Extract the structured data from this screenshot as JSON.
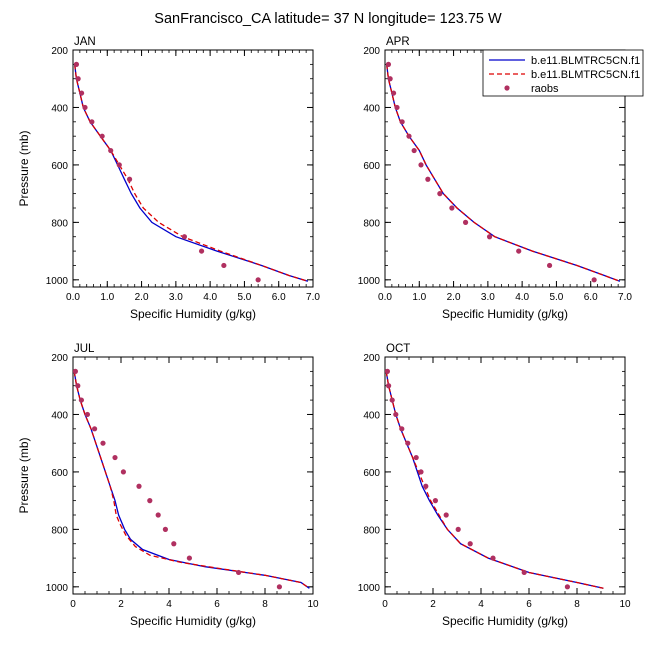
{
  "title": "SanFrancisco_CA  latitude= 37 N longitude= 123.75 W",
  "legend": {
    "items": [
      {
        "label": "b.e11.BLMTRC5CN.f1",
        "color": "#0000cc",
        "style": "solid"
      },
      {
        "label": "b.e11.BLMTRC5CN.f1",
        "color": "#dd0000",
        "style": "dashed"
      },
      {
        "label": "raobs",
        "color": "#b03060",
        "style": "marker"
      }
    ]
  },
  "chart_data": [
    {
      "type": "line",
      "panel": "JAN",
      "xlabel": "Specific Humidity (g/kg)",
      "ylabel": "Pressure (mb)",
      "xlim": [
        0,
        7
      ],
      "ylim": [
        1025,
        200
      ],
      "xticks": [
        "0.0",
        "1.0",
        "2.0",
        "3.0",
        "4.0",
        "5.0",
        "6.0",
        "7.0"
      ],
      "xtick_values": [
        0,
        1,
        2,
        3,
        4,
        5,
        6,
        7
      ],
      "yticks": [
        "200",
        "400",
        "600",
        "800",
        "1000"
      ],
      "ytick_values": [
        200,
        400,
        600,
        800,
        1000
      ],
      "series": [
        {
          "color": "#0000cc",
          "dash": "solid",
          "points": [
            [
              0.05,
              250
            ],
            [
              0.1,
              300
            ],
            [
              0.2,
              350
            ],
            [
              0.3,
              400
            ],
            [
              0.5,
              450
            ],
            [
              0.8,
              500
            ],
            [
              1.1,
              550
            ],
            [
              1.3,
              600
            ],
            [
              1.5,
              650
            ],
            [
              1.7,
              700
            ],
            [
              1.95,
              750
            ],
            [
              2.3,
              800
            ],
            [
              3.0,
              850
            ],
            [
              4.2,
              900
            ],
            [
              5.5,
              950
            ],
            [
              6.3,
              985
            ],
            [
              6.85,
              1005
            ]
          ]
        },
        {
          "color": "#dd0000",
          "dash": "dashed",
          "points": [
            [
              0.05,
              250
            ],
            [
              0.1,
              300
            ],
            [
              0.2,
              350
            ],
            [
              0.3,
              400
            ],
            [
              0.5,
              450
            ],
            [
              0.8,
              500
            ],
            [
              1.1,
              550
            ],
            [
              1.35,
              600
            ],
            [
              1.6,
              650
            ],
            [
              1.8,
              700
            ],
            [
              2.05,
              750
            ],
            [
              2.5,
              800
            ],
            [
              3.2,
              850
            ],
            [
              4.3,
              900
            ],
            [
              5.5,
              950
            ],
            [
              6.3,
              985
            ],
            [
              6.85,
              1005
            ]
          ]
        },
        {
          "color": "#b03060",
          "marker": true,
          "points": [
            [
              0.1,
              250
            ],
            [
              0.15,
              300
            ],
            [
              0.25,
              350
            ],
            [
              0.35,
              400
            ],
            [
              0.55,
              450
            ],
            [
              0.85,
              500
            ],
            [
              1.1,
              550
            ],
            [
              1.35,
              600
            ],
            [
              1.65,
              650
            ],
            [
              3.25,
              850
            ],
            [
              3.75,
              900
            ],
            [
              4.4,
              950
            ],
            [
              5.4,
              1000
            ]
          ]
        }
      ]
    },
    {
      "type": "line",
      "panel": "APR",
      "xlabel": "Specific Humidity (g/kg)",
      "ylabel": "",
      "xlim": [
        0,
        7
      ],
      "ylim": [
        1025,
        200
      ],
      "xticks": [
        "0.0",
        "1.0",
        "2.0",
        "3.0",
        "4.0",
        "5.0",
        "6.0",
        "7.0"
      ],
      "xtick_values": [
        0,
        1,
        2,
        3,
        4,
        5,
        6,
        7
      ],
      "yticks": [
        "200",
        "400",
        "600",
        "800",
        "1000"
      ],
      "ytick_values": [
        200,
        400,
        600,
        800,
        1000
      ],
      "series": [
        {
          "color": "#0000cc",
          "dash": "solid",
          "points": [
            [
              0.05,
              250
            ],
            [
              0.1,
              300
            ],
            [
              0.2,
              350
            ],
            [
              0.3,
              400
            ],
            [
              0.45,
              450
            ],
            [
              0.7,
              500
            ],
            [
              1.0,
              550
            ],
            [
              1.2,
              600
            ],
            [
              1.45,
              650
            ],
            [
              1.7,
              700
            ],
            [
              2.1,
              750
            ],
            [
              2.6,
              800
            ],
            [
              3.2,
              850
            ],
            [
              4.3,
              900
            ],
            [
              5.6,
              950
            ],
            [
              6.4,
              985
            ],
            [
              6.85,
              1005
            ]
          ]
        },
        {
          "color": "#dd0000",
          "dash": "dashed",
          "points": [
            [
              0.05,
              250
            ],
            [
              0.1,
              300
            ],
            [
              0.2,
              350
            ],
            [
              0.3,
              400
            ],
            [
              0.45,
              450
            ],
            [
              0.7,
              500
            ],
            [
              1.0,
              550
            ],
            [
              1.2,
              600
            ],
            [
              1.45,
              650
            ],
            [
              1.7,
              700
            ],
            [
              2.1,
              750
            ],
            [
              2.6,
              800
            ],
            [
              3.2,
              850
            ],
            [
              4.3,
              900
            ],
            [
              5.6,
              950
            ],
            [
              6.4,
              985
            ],
            [
              6.85,
              1005
            ]
          ]
        },
        {
          "color": "#b03060",
          "marker": true,
          "points": [
            [
              0.1,
              250
            ],
            [
              0.15,
              300
            ],
            [
              0.25,
              350
            ],
            [
              0.35,
              400
            ],
            [
              0.5,
              450
            ],
            [
              0.7,
              500
            ],
            [
              0.85,
              550
            ],
            [
              1.05,
              600
            ],
            [
              1.25,
              650
            ],
            [
              1.6,
              700
            ],
            [
              1.95,
              750
            ],
            [
              2.35,
              800
            ],
            [
              3.05,
              850
            ],
            [
              3.9,
              900
            ],
            [
              4.8,
              950
            ],
            [
              6.1,
              1000
            ]
          ]
        }
      ]
    },
    {
      "type": "line",
      "panel": "JUL",
      "xlabel": "Specific Humidity (g/kg)",
      "ylabel": "Pressure (mb)",
      "xlim": [
        0,
        10
      ],
      "ylim": [
        1025,
        200
      ],
      "xticks": [
        "0",
        "2",
        "4",
        "6",
        "8",
        "10"
      ],
      "xtick_values": [
        0,
        2,
        4,
        6,
        8,
        10
      ],
      "yticks": [
        "200",
        "400",
        "600",
        "800",
        "1000"
      ],
      "ytick_values": [
        200,
        400,
        600,
        800,
        1000
      ],
      "series": [
        {
          "color": "#0000cc",
          "dash": "solid",
          "points": [
            [
              0.05,
              250
            ],
            [
              0.15,
              300
            ],
            [
              0.3,
              350
            ],
            [
              0.5,
              400
            ],
            [
              0.75,
              450
            ],
            [
              0.95,
              500
            ],
            [
              1.15,
              550
            ],
            [
              1.35,
              600
            ],
            [
              1.55,
              650
            ],
            [
              1.75,
              700
            ],
            [
              1.9,
              750
            ],
            [
              2.15,
              800
            ],
            [
              2.4,
              835
            ],
            [
              2.9,
              870
            ],
            [
              4.0,
              905
            ],
            [
              5.5,
              930
            ],
            [
              8.0,
              960
            ],
            [
              9.5,
              985
            ],
            [
              9.85,
              1005
            ]
          ]
        },
        {
          "color": "#dd0000",
          "dash": "dashed",
          "points": [
            [
              0.05,
              250
            ],
            [
              0.15,
              300
            ],
            [
              0.3,
              350
            ],
            [
              0.5,
              400
            ],
            [
              0.75,
              450
            ],
            [
              0.95,
              500
            ],
            [
              1.15,
              550
            ],
            [
              1.35,
              600
            ],
            [
              1.55,
              650
            ],
            [
              1.7,
              700
            ],
            [
              1.8,
              750
            ],
            [
              1.95,
              780
            ],
            [
              2.2,
              820
            ],
            [
              2.6,
              860
            ],
            [
              3.2,
              890
            ],
            [
              4.5,
              915
            ],
            [
              6.0,
              935
            ],
            [
              8.0,
              960
            ],
            [
              9.5,
              985
            ],
            [
              9.85,
              1005
            ]
          ]
        },
        {
          "color": "#b03060",
          "marker": true,
          "points": [
            [
              0.1,
              250
            ],
            [
              0.2,
              300
            ],
            [
              0.35,
              350
            ],
            [
              0.6,
              400
            ],
            [
              0.9,
              450
            ],
            [
              1.25,
              500
            ],
            [
              1.75,
              550
            ],
            [
              2.1,
              600
            ],
            [
              2.75,
              650
            ],
            [
              3.2,
              700
            ],
            [
              3.55,
              750
            ],
            [
              3.85,
              800
            ],
            [
              4.2,
              850
            ],
            [
              4.85,
              900
            ],
            [
              6.9,
              950
            ],
            [
              8.6,
              1000
            ]
          ]
        }
      ]
    },
    {
      "type": "line",
      "panel": "OCT",
      "xlabel": "Specific Humidity (g/kg)",
      "ylabel": "",
      "xlim": [
        0,
        10
      ],
      "ylim": [
        1025,
        200
      ],
      "xticks": [
        "0",
        "2",
        "4",
        "6",
        "8",
        "10"
      ],
      "xtick_values": [
        0,
        2,
        4,
        6,
        8,
        10
      ],
      "yticks": [
        "200",
        "400",
        "600",
        "800",
        "1000"
      ],
      "ytick_values": [
        200,
        400,
        600,
        800,
        1000
      ],
      "series": [
        {
          "color": "#0000cc",
          "dash": "solid",
          "points": [
            [
              0.05,
              250
            ],
            [
              0.15,
              300
            ],
            [
              0.3,
              350
            ],
            [
              0.45,
              400
            ],
            [
              0.65,
              450
            ],
            [
              0.9,
              500
            ],
            [
              1.15,
              550
            ],
            [
              1.35,
              600
            ],
            [
              1.55,
              650
            ],
            [
              1.85,
              700
            ],
            [
              2.2,
              750
            ],
            [
              2.6,
              800
            ],
            [
              3.15,
              850
            ],
            [
              4.3,
              900
            ],
            [
              6.0,
              950
            ],
            [
              8.0,
              985
            ],
            [
              9.1,
              1005
            ]
          ]
        },
        {
          "color": "#dd0000",
          "dash": "dashed",
          "points": [
            [
              0.05,
              250
            ],
            [
              0.15,
              300
            ],
            [
              0.3,
              350
            ],
            [
              0.45,
              400
            ],
            [
              0.65,
              450
            ],
            [
              0.9,
              500
            ],
            [
              1.15,
              550
            ],
            [
              1.4,
              600
            ],
            [
              1.65,
              650
            ],
            [
              1.9,
              700
            ],
            [
              2.25,
              750
            ],
            [
              2.6,
              800
            ],
            [
              3.15,
              850
            ],
            [
              4.3,
              900
            ],
            [
              6.0,
              950
            ],
            [
              8.0,
              985
            ],
            [
              9.1,
              1005
            ]
          ]
        },
        {
          "color": "#b03060",
          "marker": true,
          "points": [
            [
              0.1,
              250
            ],
            [
              0.15,
              300
            ],
            [
              0.3,
              350
            ],
            [
              0.45,
              400
            ],
            [
              0.7,
              450
            ],
            [
              0.95,
              500
            ],
            [
              1.3,
              550
            ],
            [
              1.5,
              600
            ],
            [
              1.7,
              650
            ],
            [
              2.1,
              700
            ],
            [
              2.55,
              750
            ],
            [
              3.05,
              800
            ],
            [
              3.55,
              850
            ],
            [
              4.5,
              900
            ],
            [
              5.8,
              950
            ],
            [
              7.6,
              1000
            ]
          ]
        }
      ]
    }
  ]
}
